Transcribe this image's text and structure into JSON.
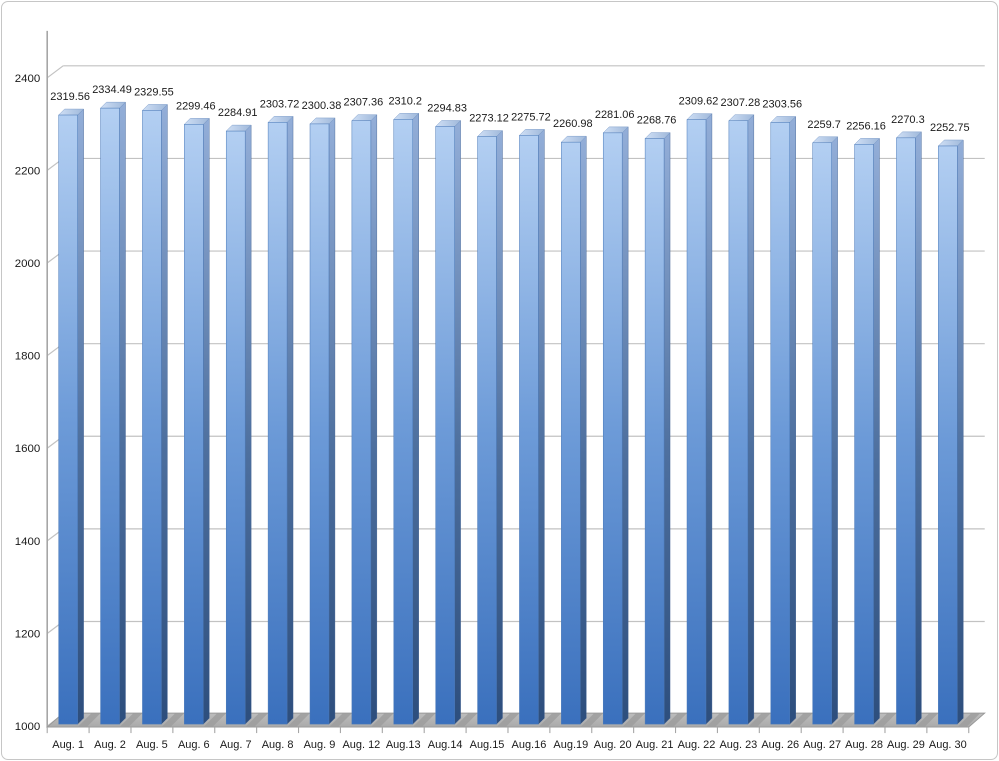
{
  "chart_data": {
    "type": "bar",
    "title": "",
    "xlabel": "",
    "ylabel": "",
    "categories": [
      "Aug. 1",
      "Aug. 2",
      "Aug. 5",
      "Aug. 6",
      "Aug. 7",
      "Aug. 8",
      "Aug. 9",
      "Aug. 12",
      "Aug.13",
      "Aug.14",
      "Aug.15",
      "Aug.16",
      "Aug.19",
      "Aug. 20",
      "Aug. 21",
      "Aug. 22",
      "Aug. 23",
      "Aug. 26",
      "Aug. 27",
      "Aug. 28",
      "Aug. 29",
      "Aug. 30"
    ],
    "values": [
      2319.56,
      2334.49,
      2329.55,
      2299.46,
      2284.91,
      2303.72,
      2300.38,
      2307.36,
      2310.2,
      2294.83,
      2273.12,
      2275.72,
      2260.98,
      2281.06,
      2268.76,
      2309.62,
      2307.28,
      2303.56,
      2259.7,
      2256.16,
      2270.3,
      2252.75
    ],
    "ylim": [
      1000,
      2400
    ],
    "y_ticks": [
      1000,
      1200,
      1400,
      1600,
      1800,
      2000,
      2200,
      2400
    ],
    "grid": true,
    "legend": false,
    "style": "3d-beveled-bars",
    "colors": {
      "bar_front_top": "#b3cff2",
      "bar_front_mid": "#6d9bd8",
      "bar_front_bottom": "#3a70bd",
      "bar_side_top": "#93aed8",
      "bar_side_bottom": "#2d4e7d",
      "bar_top_face": "#cfdff5",
      "gridline": "#c2c2c2",
      "axis": "#a6a6a6",
      "floor": "#b3b3b3",
      "text": "#1a1a1a",
      "background": "#ffffff",
      "border": "#c6c6c6"
    }
  }
}
